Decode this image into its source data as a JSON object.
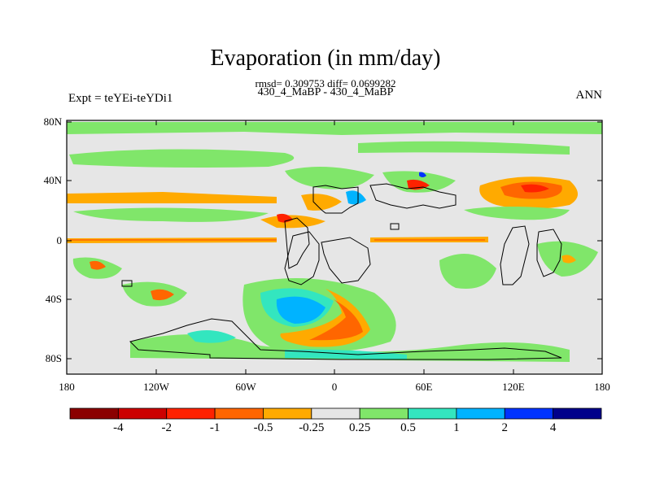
{
  "title": "Evaporation (in mm/day)",
  "stats_line": "rmsd= 0.309753 diff= 0.0699282",
  "case_line": "430_4_MaBP - 430_4_MaBP",
  "experiment": "Expt = teYEi-teYDi1",
  "season": "ANN",
  "x_ticks": [
    "180",
    "120W",
    "60W",
    "0",
    "60E",
    "120E",
    "180"
  ],
  "y_ticks": [
    "80N",
    "40N",
    "0",
    "40S",
    "80S"
  ],
  "colorbar": {
    "colors": [
      "#8b0000",
      "#cc0000",
      "#ff2200",
      "#ff6600",
      "#ffaa00",
      "#e6e6e6",
      "#80e66a",
      "#33e6bf",
      "#00b3ff",
      "#0033ff",
      "#00008b"
    ],
    "labels": [
      "-4",
      "-2",
      "-1",
      "-0.5",
      "-0.25",
      "0.25",
      "0.5",
      "1",
      "2",
      "4"
    ]
  }
}
